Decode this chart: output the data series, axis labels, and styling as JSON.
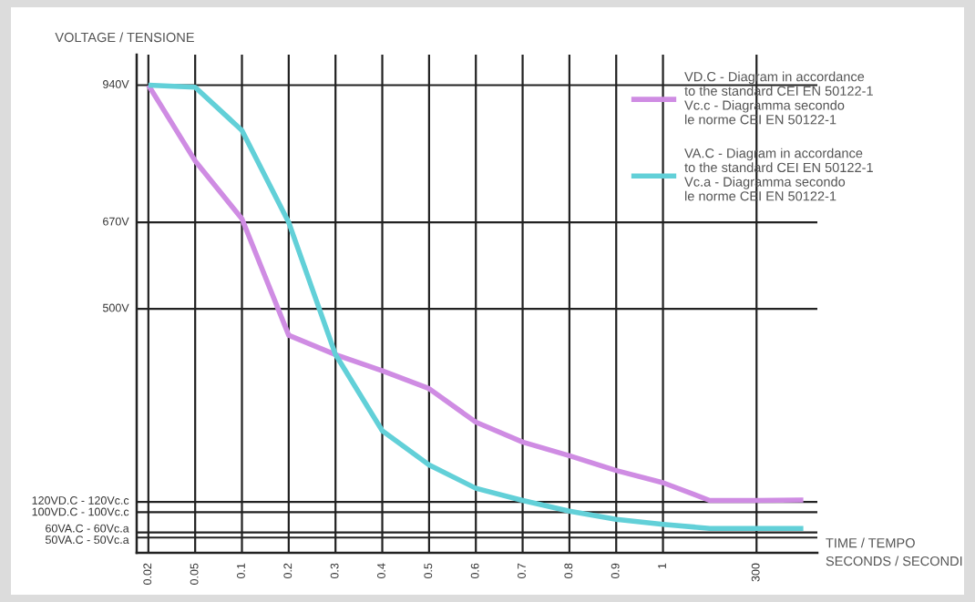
{
  "chart_data": {
    "type": "line",
    "xlabel": "TIME / TEMPO\nSECONDS / SECONDI",
    "ylabel": "VOLTAGE / TENSIONE",
    "categories": [
      "0.02",
      "0.05",
      "0.1",
      "0.2",
      "0.3",
      "0.4",
      "0.5",
      "0.6",
      "0.7",
      "0.8",
      "0.9",
      "1",
      null,
      "300",
      null
    ],
    "ylim": [
      20,
      1000
    ],
    "yticks": [
      {
        "value": 50,
        "label": "50VA.C - 50Vc.a"
      },
      {
        "value": 60,
        "label": "60VA.C - 60Vc.a"
      },
      {
        "value": 100,
        "label": "100VD.C - 100Vc.c"
      },
      {
        "value": 120,
        "label": "120VD.C - 120Vc.c"
      },
      {
        "value": 500,
        "label": "500V"
      },
      {
        "value": 670,
        "label": "670V"
      },
      {
        "value": 940,
        "label": "940V"
      }
    ],
    "grid": true,
    "legend": "top right",
    "series": [
      {
        "name": "VD.C - Diagram in accordance\nto the standard CEI EN 50122-1\nVc.c - Diagramma secondo\nle norme CEI EN 50122-1",
        "color": "#cf8ce3",
        "values": [
          940,
          791,
          677,
          448,
          410,
          378,
          343,
          277,
          238,
          211,
          182,
          158,
          123,
          123,
          124
        ]
      },
      {
        "name": "VA.C - Diagram in accordance\nto the standard CEI EN 50122-1\nVc.a - Diagramma secondo\nle norme CEI EN 50122-1",
        "color": "#62d0d8",
        "values": [
          940,
          936,
          851,
          670,
          410,
          260,
          193,
          147,
          123,
          102,
          86,
          76,
          68,
          68,
          68
        ]
      }
    ]
  }
}
